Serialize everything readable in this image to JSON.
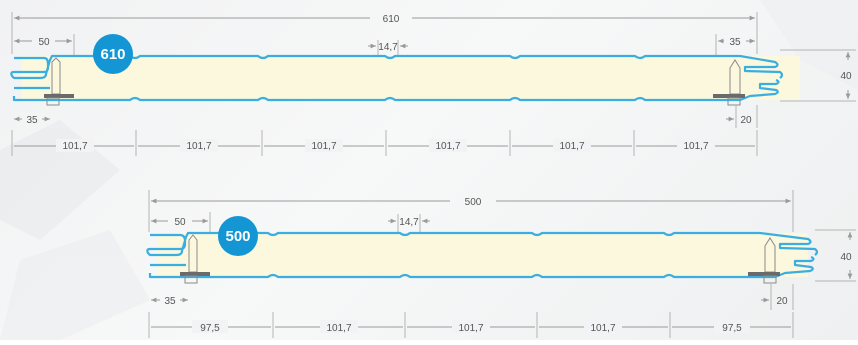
{
  "panels": [
    {
      "badge": "610",
      "overall_width": "610",
      "left_lap": "50",
      "rib_width": "14,7",
      "right_lap": "35",
      "thickness": "40",
      "bottom_left": "35",
      "bottom_right": "20",
      "segments": [
        "101,7",
        "101,7",
        "101,7",
        "101,7",
        "101,7",
        "101,7"
      ]
    },
    {
      "badge": "500",
      "overall_width": "500",
      "left_lap": "50",
      "rib_width": "14,7",
      "thickness": "40",
      "bottom_left": "35",
      "bottom_right": "20",
      "segments": [
        "97,5",
        "101,7",
        "101,7",
        "101,7",
        "97,5"
      ]
    }
  ],
  "colors": {
    "skin": "#3aaee0",
    "core": "#fbf8de",
    "badge": "#1496d4"
  }
}
